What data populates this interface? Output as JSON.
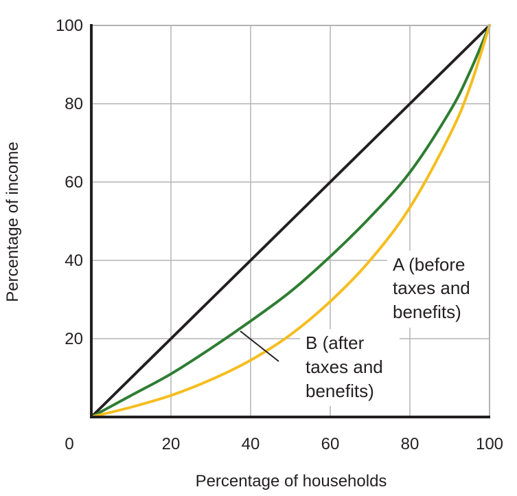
{
  "chart_data": {
    "type": "line",
    "title": "",
    "xlabel": "Percentage of households",
    "ylabel": "Percentage of income",
    "xlim": [
      0,
      100
    ],
    "ylim": [
      0,
      100
    ],
    "grid": true,
    "x_ticks": [
      {
        "value": 0,
        "label": "0"
      },
      {
        "value": 20,
        "label": "20"
      },
      {
        "value": 40,
        "label": "40"
      },
      {
        "value": 60,
        "label": "60"
      },
      {
        "value": 80,
        "label": "80"
      },
      {
        "value": 100,
        "label": "100"
      }
    ],
    "y_ticks": [
      {
        "value": 20,
        "label": "20"
      },
      {
        "value": 40,
        "label": "40"
      },
      {
        "value": 60,
        "label": "60"
      },
      {
        "value": 80,
        "label": "80"
      },
      {
        "value": 100,
        "label": "100"
      }
    ],
    "series": [
      {
        "color": "#231f20",
        "x": [
          0,
          20,
          40,
          60,
          80,
          100
        ],
        "y": [
          0,
          20,
          40,
          60,
          80,
          100
        ]
      },
      {
        "name": "B (after taxes and benefits)",
        "color": "#2e7d32",
        "x": [
          0,
          10,
          20,
          30,
          40,
          50,
          60,
          70,
          80,
          90,
          95,
          100
        ],
        "y": [
          0,
          5.5,
          11,
          17.5,
          24.5,
          32,
          41,
          51,
          62.5,
          78,
          88,
          100
        ]
      },
      {
        "name": "A (before taxes and benefits)",
        "color": "#f5bd1f",
        "x": [
          0,
          10,
          20,
          30,
          40,
          50,
          60,
          70,
          80,
          90,
          95,
          100
        ],
        "y": [
          0,
          2.5,
          5.5,
          9.5,
          14.5,
          21,
          29.5,
          40,
          53.5,
          72,
          84,
          100
        ]
      }
    ],
    "annotations": {
      "a_lines": [
        "A (before",
        "taxes and",
        "benefits)"
      ],
      "b_lines": [
        "B (after",
        "taxes and",
        "benefits)"
      ]
    }
  }
}
